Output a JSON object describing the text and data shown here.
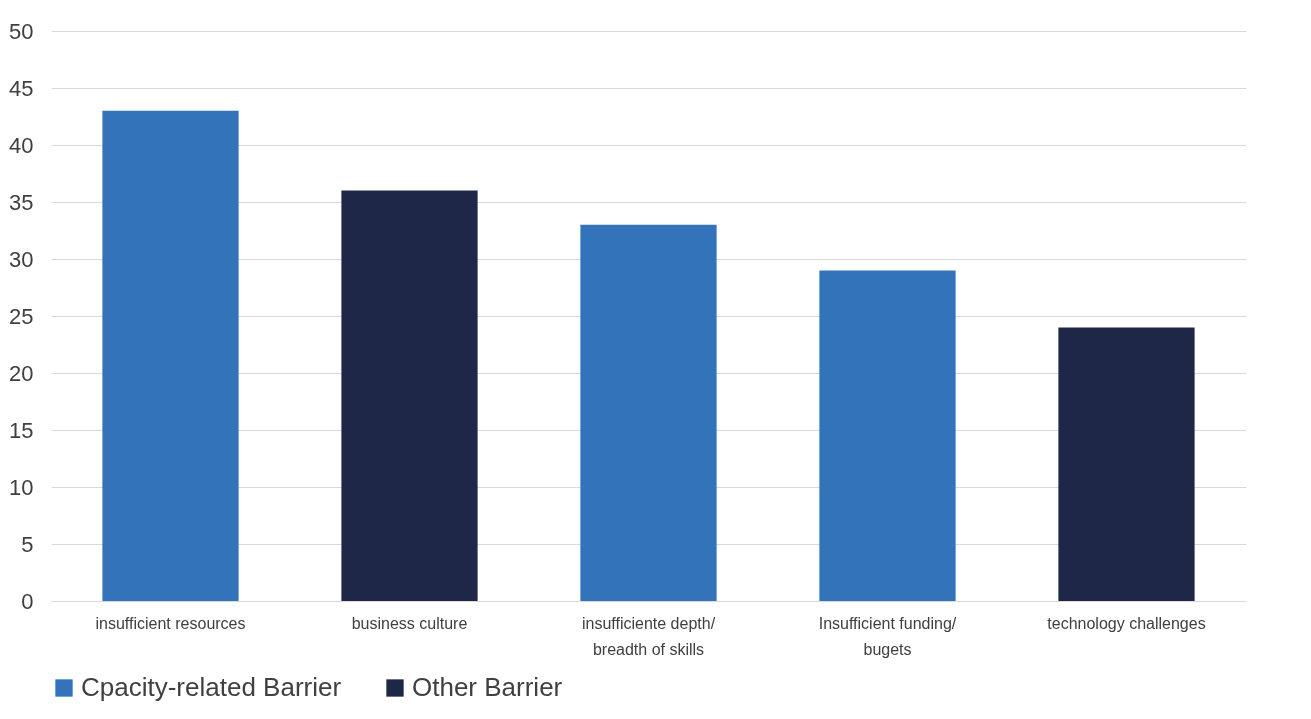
{
  "chart_data": {
    "type": "bar",
    "categories": [
      "insufficient resources",
      "business culture",
      "insufficiente depth/ breadth of skills",
      "Insufficient funding/ bugets",
      "technology challenges"
    ],
    "series": [
      {
        "name": "Cpacity-related Barrier",
        "color": "#3373ba",
        "values": [
          43,
          null,
          33,
          29,
          null
        ]
      },
      {
        "name": "Other Barrier",
        "color": "#1f2749",
        "values": [
          null,
          36,
          null,
          null,
          24
        ]
      }
    ],
    "ylim": [
      0,
      50
    ],
    "yticks": [
      0,
      5,
      10,
      15,
      20,
      25,
      30,
      35,
      40,
      45,
      50
    ],
    "grid": "y",
    "legend": "bottom"
  }
}
